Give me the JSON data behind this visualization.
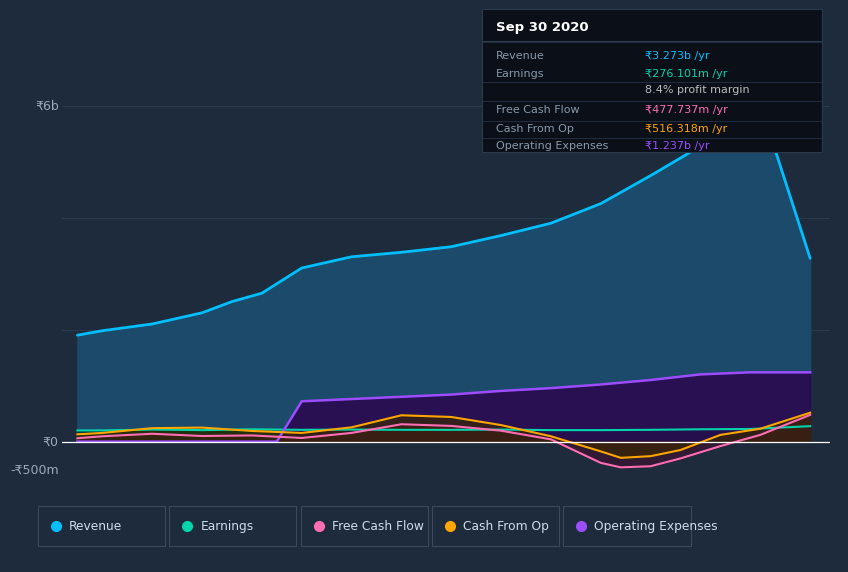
{
  "background_color": "#1e2b3c",
  "plot_bg_color": "#1e2b3c",
  "grid_color": "#2a3a4e",
  "xlim": [
    2013.6,
    2021.3
  ],
  "ylim": [
    -700000000,
    6800000000
  ],
  "x_ticks": [
    2014,
    2015,
    2016,
    2017,
    2018,
    2019,
    2020
  ],
  "ytick_labels": [
    {
      "val": 6000000000,
      "text": "₹6b"
    },
    {
      "val": 0,
      "text": "₹0"
    },
    {
      "val": -500000000,
      "text": "-₹500m"
    }
  ],
  "revenue_x": [
    2013.75,
    2014.0,
    2014.5,
    2015.0,
    2015.3,
    2015.6,
    2016.0,
    2016.5,
    2017.0,
    2017.5,
    2018.0,
    2018.5,
    2019.0,
    2019.5,
    2020.1,
    2020.5,
    2020.75,
    2021.1
  ],
  "revenue_y": [
    1900000000,
    1980000000,
    2100000000,
    2300000000,
    2500000000,
    2650000000,
    3100000000,
    3300000000,
    3380000000,
    3480000000,
    3680000000,
    3900000000,
    4250000000,
    4750000000,
    5380000000,
    5420000000,
    5200000000,
    3273000000
  ],
  "revenue_color": "#00bfff",
  "revenue_fill": "#1b4a6b",
  "earnings_x": [
    2013.75,
    2014.0,
    2014.5,
    2015.0,
    2015.5,
    2016.0,
    2016.5,
    2017.0,
    2017.5,
    2018.0,
    2018.5,
    2019.0,
    2019.5,
    2020.0,
    2020.5,
    2021.1
  ],
  "earnings_y": [
    200000000,
    200000000,
    215000000,
    205000000,
    220000000,
    210000000,
    215000000,
    210000000,
    210000000,
    215000000,
    205000000,
    205000000,
    210000000,
    220000000,
    225000000,
    276000000
  ],
  "earnings_color": "#00d4aa",
  "earnings_fill": "#003d30",
  "fcf_x": [
    2013.75,
    2014.0,
    2014.5,
    2015.0,
    2015.5,
    2016.0,
    2016.5,
    2017.0,
    2017.5,
    2018.0,
    2018.5,
    2019.0,
    2019.2,
    2019.5,
    2019.8,
    2020.2,
    2020.6,
    2021.1
  ],
  "fcf_y": [
    60000000,
    95000000,
    140000000,
    100000000,
    110000000,
    65000000,
    155000000,
    310000000,
    280000000,
    195000000,
    40000000,
    -380000000,
    -460000000,
    -440000000,
    -300000000,
    -80000000,
    120000000,
    477000000
  ],
  "fcf_color": "#ff6eb4",
  "fcf_fill": "#3d1030",
  "cfo_x": [
    2013.75,
    2014.0,
    2014.5,
    2015.0,
    2015.5,
    2016.0,
    2016.5,
    2017.0,
    2017.5,
    2018.0,
    2018.5,
    2019.0,
    2019.2,
    2019.5,
    2019.8,
    2020.2,
    2020.6,
    2021.1
  ],
  "cfo_y": [
    130000000,
    155000000,
    240000000,
    250000000,
    190000000,
    155000000,
    255000000,
    470000000,
    440000000,
    295000000,
    95000000,
    -175000000,
    -290000000,
    -260000000,
    -150000000,
    120000000,
    230000000,
    516000000
  ],
  "cfo_color": "#ffa500",
  "cfo_fill": "#3a2800",
  "opex_x": [
    2013.75,
    2015.5,
    2015.75,
    2016.0,
    2016.5,
    2017.0,
    2017.5,
    2018.0,
    2018.5,
    2019.0,
    2019.5,
    2020.0,
    2020.5,
    2021.1
  ],
  "opex_y": [
    0,
    0,
    0,
    720000000,
    760000000,
    800000000,
    840000000,
    905000000,
    955000000,
    1020000000,
    1100000000,
    1200000000,
    1237000000,
    1237000000
  ],
  "opex_color": "#9b4dff",
  "opex_fill": "#2a0a50",
  "info_box": {
    "title": "Sep 30 2020",
    "rows": [
      {
        "label": "Revenue",
        "value": "₹3.273b /yr",
        "vc": "#00bfff",
        "divider_after": true
      },
      {
        "label": "Earnings",
        "value": "₹276.101m /yr",
        "vc": "#00d4aa",
        "divider_after": false
      },
      {
        "label": "",
        "value": "8.4% profit margin",
        "vc": "#bbbbbb",
        "divider_after": true
      },
      {
        "label": "Free Cash Flow",
        "value": "₹477.737m /yr",
        "vc": "#ff6eb4",
        "divider_after": true
      },
      {
        "label": "Cash From Op",
        "value": "₹516.318m /yr",
        "vc": "#ffa500",
        "divider_after": true
      },
      {
        "label": "Operating Expenses",
        "value": "₹1.237b /yr",
        "vc": "#9b4dff",
        "divider_after": false
      }
    ]
  },
  "legend_items": [
    {
      "label": "Revenue",
      "color": "#00bfff"
    },
    {
      "label": "Earnings",
      "color": "#00d4aa"
    },
    {
      "label": "Free Cash Flow",
      "color": "#ff6eb4"
    },
    {
      "label": "Cash From Op",
      "color": "#ffa500"
    },
    {
      "label": "Operating Expenses",
      "color": "#9b4dff"
    }
  ]
}
